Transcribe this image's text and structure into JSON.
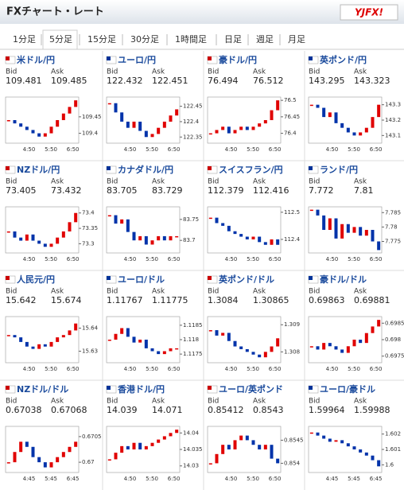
{
  "header": {
    "title": "FXチャート・レート",
    "logo": "YJFX!"
  },
  "tabs": [
    "1分足",
    "5分足",
    "15分足",
    "30分足",
    "1時間足",
    "日足",
    "週足",
    "月足"
  ],
  "selected_tab": 1,
  "bid_label": "Bid",
  "ask_label": "Ask",
  "panels": [
    {
      "name": "米ドル/円",
      "bid": "109.481",
      "ask": "109.485",
      "ylim": [
        109.37,
        109.51
      ],
      "yticks": [
        109.45,
        109.4
      ],
      "xticks": [
        "4:50",
        "5:50",
        "6:50"
      ],
      "closes": [
        109.44,
        109.43,
        109.42,
        109.41,
        109.4,
        109.39,
        109.4,
        109.42,
        109.44,
        109.46,
        109.48,
        109.5
      ]
    },
    {
      "name": "ユーロ/円",
      "bid": "122.432",
      "ask": "122.451",
      "ylim": [
        122.33,
        122.48
      ],
      "yticks": [
        122.45,
        122.4,
        122.35
      ],
      "xticks": [
        "4:50",
        "5:50",
        "6:50"
      ],
      "closes": [
        122.46,
        122.43,
        122.4,
        122.38,
        122.4,
        122.37,
        122.35,
        122.36,
        122.38,
        122.4,
        122.42,
        122.44
      ]
    },
    {
      "name": "豪ドル/円",
      "bid": "76.494",
      "ask": "76.512",
      "ylim": [
        76.37,
        76.51
      ],
      "yticks": [
        76.5,
        76.45,
        76.4
      ],
      "xticks": [
        "4:50",
        "5:50",
        "6:50"
      ],
      "closes": [
        76.4,
        76.41,
        76.42,
        76.4,
        76.41,
        76.42,
        76.41,
        76.42,
        76.43,
        76.44,
        76.47,
        76.5
      ]
    },
    {
      "name": "英ポンド/円",
      "bid": "143.295",
      "ask": "143.323",
      "ylim": [
        143.05,
        143.35
      ],
      "yticks": [
        143.3,
        143.2,
        143.1
      ],
      "xticks": [
        "4:50",
        "5:50",
        "6:50"
      ],
      "closes": [
        143.3,
        143.28,
        143.22,
        143.25,
        143.18,
        143.15,
        143.12,
        143.1,
        143.12,
        143.15,
        143.22,
        143.3
      ]
    },
    {
      "name": "NZドル/円",
      "bid": "73.405",
      "ask": "73.432",
      "ylim": [
        73.27,
        73.42
      ],
      "yticks": [
        73.4,
        73.35,
        73.3
      ],
      "xticks": [
        "4:50",
        "5:50",
        "6:50"
      ],
      "closes": [
        73.34,
        73.32,
        73.31,
        73.33,
        73.31,
        73.3,
        73.29,
        73.3,
        73.32,
        73.34,
        73.37,
        73.4
      ]
    },
    {
      "name": "カナダドル/円",
      "bid": "83.705",
      "ask": "83.729",
      "ylim": [
        83.67,
        83.78
      ],
      "yticks": [
        83.75,
        83.7
      ],
      "xticks": [
        "4:50",
        "5:50",
        "6:50"
      ],
      "closes": [
        83.76,
        83.74,
        83.75,
        83.72,
        83.7,
        83.71,
        83.69,
        83.7,
        83.71,
        83.7,
        83.71,
        83.71
      ]
    },
    {
      "name": "スイスフラン/円",
      "bid": "112.379",
      "ask": "112.416",
      "ylim": [
        112.35,
        112.52
      ],
      "yticks": [
        112.5,
        112.4
      ],
      "xticks": [
        "4:50",
        "5:50",
        "6:50"
      ],
      "closes": [
        112.48,
        112.46,
        112.45,
        112.43,
        112.42,
        112.41,
        112.4,
        112.41,
        112.39,
        112.38,
        112.4,
        112.38
      ]
    },
    {
      "name": "ランド/円",
      "bid": "7.772",
      "ask": "7.81",
      "ylim": [
        7.771,
        7.787
      ],
      "yticks": [
        7.785,
        7.78,
        7.775
      ],
      "xticks": [
        "4:50",
        "5:50",
        "6:50"
      ],
      "closes": [
        7.786,
        7.784,
        7.779,
        7.783,
        7.776,
        7.781,
        7.778,
        7.78,
        7.777,
        7.779,
        7.775,
        7.772
      ]
    },
    {
      "name": "人民元/円",
      "bid": "15.642",
      "ask": "15.674",
      "ylim": [
        15.625,
        15.645
      ],
      "yticks": [
        15.64,
        15.63
      ],
      "xticks": [
        "4:50",
        "5:50",
        "6:50"
      ],
      "closes": [
        15.637,
        15.636,
        15.634,
        15.632,
        15.631,
        15.633,
        15.632,
        15.634,
        15.636,
        15.637,
        15.639,
        15.642
      ]
    },
    {
      "name": "ユーロ/ドル",
      "bid": "1.11767",
      "ask": "1.11775",
      "ylim": [
        1.1172,
        1.1188
      ],
      "yticks": [
        1.1185,
        1.118,
        1.1175
      ],
      "xticks": [
        "4:50",
        "5:50",
        "6:50"
      ],
      "closes": [
        1.118,
        1.1182,
        1.1184,
        1.1181,
        1.1179,
        1.118,
        1.1177,
        1.1176,
        1.1175,
        1.1176,
        1.1177,
        1.1177
      ]
    },
    {
      "name": "英ポンド/ドル",
      "bid": "1.3084",
      "ask": "1.30865",
      "ylim": [
        1.3076,
        1.3093
      ],
      "yticks": [
        1.309,
        1.308
      ],
      "xticks": [
        "4:50",
        "5:50",
        "6:50"
      ],
      "closes": [
        1.3088,
        1.3086,
        1.3087,
        1.3084,
        1.3082,
        1.3081,
        1.308,
        1.3079,
        1.3078,
        1.308,
        1.3082,
        1.3085
      ]
    },
    {
      "name": "豪ドル/ドル",
      "bid": "0.69863",
      "ask": "0.69881",
      "ylim": [
        0.6973,
        0.6987
      ],
      "yticks": [
        0.6985,
        0.698,
        0.6975
      ],
      "xticks": [
        "4:50",
        "5:50",
        "6:50"
      ],
      "closes": [
        0.6978,
        0.6977,
        0.6979,
        0.6978,
        0.6977,
        0.6976,
        0.6978,
        0.698,
        0.6979,
        0.6982,
        0.6984,
        0.6986
      ]
    },
    {
      "name": "NZドル/ドル",
      "bid": "0.67038",
      "ask": "0.67068",
      "ylim": [
        0.6698,
        0.6707
      ],
      "yticks": [
        0.6705,
        0.67
      ],
      "xticks": [
        "4:45",
        "5:45",
        "6:45"
      ],
      "closes": [
        0.67,
        0.6702,
        0.6704,
        0.6703,
        0.6701,
        0.67,
        0.6699,
        0.67,
        0.6701,
        0.6702,
        0.6703,
        0.6704
      ]
    },
    {
      "name": "香港ドル/円",
      "bid": "14.039",
      "ask": "14.071",
      "ylim": [
        14.028,
        14.042
      ],
      "yticks": [
        14.04,
        14.035,
        14.03
      ],
      "xticks": [
        "4:50",
        "5:50",
        "6:50"
      ],
      "closes": [
        14.032,
        14.034,
        14.036,
        14.035,
        14.037,
        14.035,
        14.036,
        14.037,
        14.038,
        14.039,
        14.04,
        14.041
      ]
    },
    {
      "name": "ユーロ/英ポンド",
      "bid": "0.85412",
      "ask": "0.8543",
      "ylim": [
        0.8538,
        0.8548
      ],
      "yticks": [
        0.8545,
        0.854
      ],
      "xticks": [
        "4:50",
        "5:50",
        "6:50"
      ],
      "closes": [
        0.854,
        0.8542,
        0.8544,
        0.8543,
        0.8545,
        0.8546,
        0.8545,
        0.8544,
        0.8543,
        0.8544,
        0.8541,
        0.854
      ]
    },
    {
      "name": "ユーロ/豪ドル",
      "bid": "1.59964",
      "ask": "1.59988",
      "ylim": [
        1.5995,
        1.6025
      ],
      "yticks": [
        1.602,
        1.601,
        1.6
      ],
      "xticks": [
        "4:45",
        "5:45",
        "6:45"
      ],
      "closes": [
        1.6021,
        1.6019,
        1.6017,
        1.6015,
        1.6016,
        1.6014,
        1.6012,
        1.601,
        1.6008,
        1.6006,
        1.6003,
        1.5999
      ]
    }
  ]
}
